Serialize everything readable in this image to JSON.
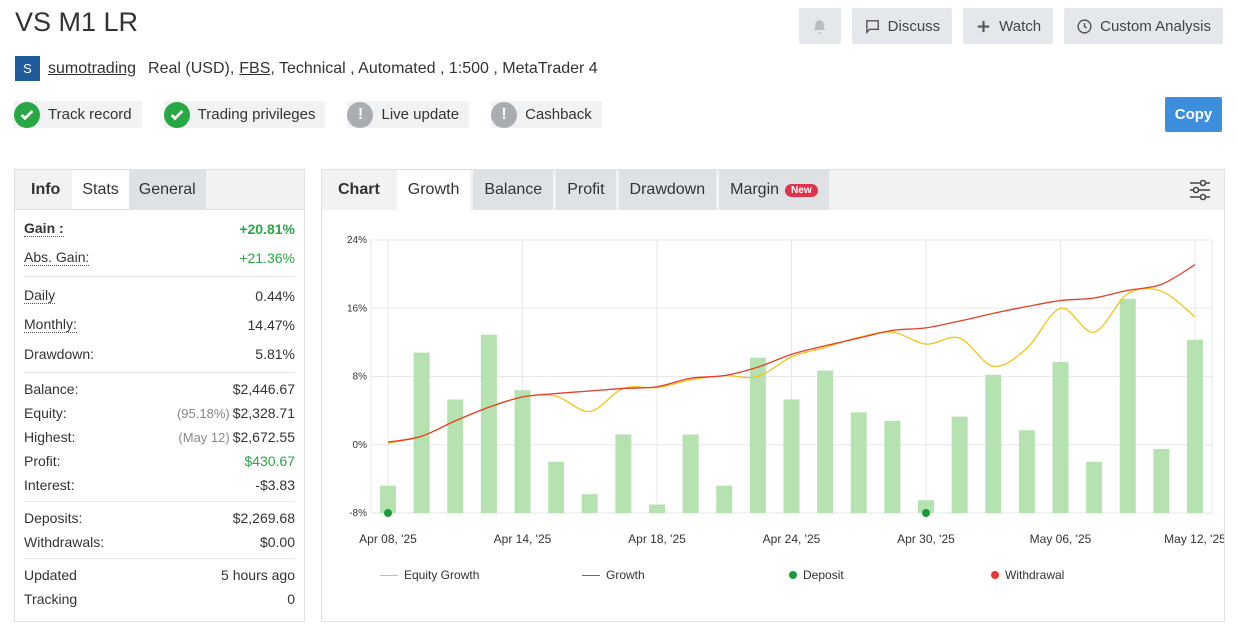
{
  "header": {
    "title": "VS M1 LR",
    "discuss_label": "Discuss",
    "watch_label": "Watch",
    "custom_analysis_label": "Custom Analysis",
    "copy_label": "Copy"
  },
  "account": {
    "avatar_letter": "S",
    "username": "sumotrading",
    "type": "Real (USD),",
    "broker": "FBS",
    "details": ", Technical , Automated , 1:500 , MetaTrader 4"
  },
  "badges": [
    {
      "label": "Track record",
      "status": "verified"
    },
    {
      "label": "Trading privileges",
      "status": "verified"
    },
    {
      "label": "Live update",
      "status": "unverified"
    },
    {
      "label": "Cashback",
      "status": "unverified"
    }
  ],
  "stats_tabs": {
    "label": "Info",
    "tabs": [
      "Stats",
      "General"
    ]
  },
  "stats": {
    "gain": {
      "label": "Gain :",
      "value": "+20.81%"
    },
    "abs_gain": {
      "label": "Abs. Gain:",
      "value": "+21.36%"
    },
    "daily": {
      "label": "Daily",
      "value": "0.44%"
    },
    "monthly": {
      "label": "Monthly:",
      "value": "14.47%"
    },
    "drawdown": {
      "label": "Drawdown:",
      "value": "5.81%"
    },
    "balance": {
      "label": "Balance:",
      "value": "$2,446.67"
    },
    "equity": {
      "label": "Equity:",
      "note": "(95.18%)",
      "value": "$2,328.71"
    },
    "highest": {
      "label": "Highest:",
      "note": "(May 12)",
      "value": "$2,672.55"
    },
    "profit": {
      "label": "Profit:",
      "value": "$430.67"
    },
    "interest": {
      "label": "Interest:",
      "value": "-$3.83"
    },
    "deposits": {
      "label": "Deposits:",
      "value": "$2,269.68"
    },
    "withdrawals": {
      "label": "Withdrawals:",
      "value": "$0.00"
    },
    "updated": {
      "label": "Updated",
      "value": "5 hours ago"
    },
    "tracking": {
      "label": "Tracking",
      "value": "0"
    }
  },
  "chart_tabs": {
    "label": "Chart",
    "tabs": [
      "Growth",
      "Balance",
      "Profit",
      "Drawdown",
      "Margin"
    ],
    "new_badge": "New"
  },
  "chart_data": {
    "type": "bar",
    "ylim": [
      -8,
      24
    ],
    "y_ticks": [
      "24%",
      "16%",
      "8%",
      "0%",
      "-8%"
    ],
    "y_tick_values": [
      24,
      16,
      8,
      0,
      -8
    ],
    "x_tick_labels": [
      "Apr 08, '25",
      "Apr 14, '25",
      "Apr 18, '25",
      "Apr 24, '25",
      "Apr 30, '25",
      "May 06, '25",
      "May 12, '25"
    ],
    "x_tick_positions": [
      0,
      4,
      8,
      12,
      16,
      20,
      24
    ],
    "categories_count": 25,
    "bar_values": [
      -4.8,
      10.8,
      5.3,
      12.9,
      6.4,
      -2.0,
      -5.8,
      1.2,
      -7.0,
      1.2,
      -4.8,
      10.2,
      5.3,
      8.7,
      3.8,
      2.8,
      -6.5,
      3.3,
      8.2,
      1.7,
      9.7,
      -2.0,
      17.1,
      -0.5,
      12.3
    ],
    "series": [
      {
        "name": "Equity Growth",
        "color": "#f2c418",
        "values": [
          0.2,
          1.0,
          2.8,
          4.4,
          5.6,
          5.7,
          3.9,
          6.6,
          6.7,
          7.6,
          8.1,
          8.0,
          10.3,
          11.4,
          12.6,
          13.2,
          11.8,
          12.5,
          9.2,
          11.3,
          16.0,
          13.2,
          17.7,
          18.0,
          15.0
        ]
      },
      {
        "name": "Growth",
        "color": "#e0402a",
        "values": [
          0.3,
          1.0,
          2.8,
          4.4,
          5.6,
          6.0,
          6.3,
          6.6,
          6.8,
          7.8,
          8.1,
          9.1,
          10.6,
          11.6,
          12.5,
          13.4,
          13.7,
          14.5,
          15.4,
          16.2,
          16.9,
          17.2,
          18.1,
          18.8,
          21.1
        ]
      }
    ],
    "deposits_at": [
      0,
      16
    ],
    "legend": [
      {
        "label": "Equity Growth",
        "kind": "line",
        "color": "#f2c418"
      },
      {
        "label": "Growth",
        "kind": "line",
        "color": "#e0402a"
      },
      {
        "label": "Deposit",
        "kind": "dot",
        "color": "#1a9b3f"
      },
      {
        "label": "Withdrawal",
        "kind": "dot",
        "color": "#e53935"
      }
    ],
    "bar_color": "#b5e2b0",
    "grid": true
  }
}
